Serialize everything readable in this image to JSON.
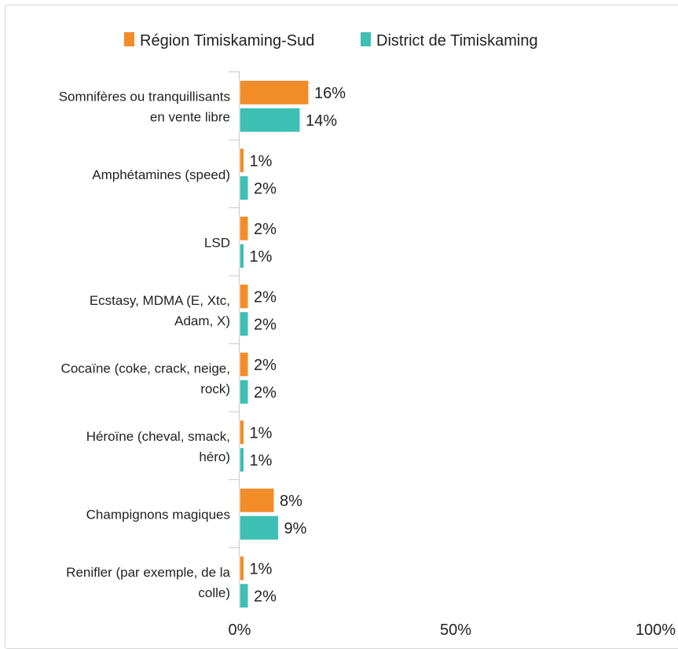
{
  "chart_data": {
    "type": "bar",
    "orientation": "horizontal",
    "categories": [
      [
        "Somnifères ou tranquillisants",
        "en vente libre"
      ],
      [
        "Amphétamines (speed)"
      ],
      [
        "LSD"
      ],
      [
        "Ecstasy, MDMA (E, Xtc,",
        "Adam, X)"
      ],
      [
        "Cocaïne (coke, crack, neige,",
        "rock)"
      ],
      [
        "Héroïne (cheval, smack,",
        "héro)"
      ],
      [
        "Champignons magiques"
      ],
      [
        "Renifler (par exemple, de la",
        "colle)"
      ]
    ],
    "series": [
      {
        "name": "Région Timiskaming-Sud",
        "color": "#f28c28",
        "values": [
          16,
          1,
          2,
          2,
          2,
          1,
          8,
          1
        ],
        "labels": [
          "16%",
          "1%",
          "2%",
          "2%",
          "2%",
          "1%",
          "8%",
          "1%"
        ]
      },
      {
        "name": "District de Timiskaming",
        "color": "#3dbfb4",
        "values": [
          14,
          2,
          1,
          2,
          2,
          1,
          9,
          2
        ],
        "labels": [
          "14%",
          "2%",
          "1%",
          "2%",
          "2%",
          "1%",
          "9%",
          "2%"
        ]
      }
    ],
    "xlim": [
      0,
      100
    ],
    "xticks": [
      0,
      50,
      100
    ],
    "xtick_labels": [
      "0%",
      "50%",
      "100%"
    ],
    "legend_position": "top",
    "grid": false
  }
}
